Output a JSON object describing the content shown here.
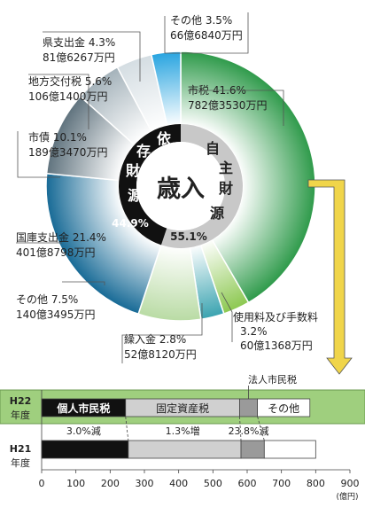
{
  "chart_data": [
    {
      "type": "pie",
      "center_label": "歳入",
      "groups": [
        {
          "label_chars": [
            "自",
            "主",
            "財",
            "源"
          ],
          "percent_text": "55.1%"
        },
        {
          "label_chars": [
            "依",
            "存",
            "財",
            "源"
          ],
          "percent_text": "44.9%"
        }
      ],
      "slices": [
        {
          "name": "市税",
          "value": 41.6,
          "percent_text": "41.6%",
          "amount": "782億3530万円",
          "color": "#2e9a4a"
        },
        {
          "name": "使用料及び手数料",
          "value": 3.2,
          "percent_text": "3.2%",
          "amount": "60億1368万円",
          "color": "#8cc850"
        },
        {
          "name": "繰入金",
          "value": 2.8,
          "percent_text": "2.8%",
          "amount": "52億8120万円",
          "color": "#3aa3b0"
        },
        {
          "name": "その他",
          "value": 7.5,
          "percent_text": "7.5%",
          "amount": "140億3495万円",
          "color": "#b9dba4"
        },
        {
          "name": "国庫支出金",
          "value": 21.4,
          "percent_text": "21.4%",
          "amount": "401億8798万円",
          "color": "#176a96"
        },
        {
          "name": "市債",
          "value": 10.1,
          "percent_text": "10.1%",
          "amount": "189億3470万円",
          "color": "#60737e"
        },
        {
          "name": "地方交付税",
          "value": 5.6,
          "percent_text": "5.6%",
          "amount": "106億1400万円",
          "color": "#a4b2ba"
        },
        {
          "name": "県支出金",
          "value": 4.3,
          "percent_text": "4.3%",
          "amount": "81億6267万円",
          "color": "#d4dde2"
        },
        {
          "name": "その他",
          "value": 3.5,
          "percent_text": "3.5%",
          "amount": "66億6840万円",
          "color": "#28a4e0"
        }
      ]
    },
    {
      "type": "bar",
      "orientation": "horizontal",
      "stacked": true,
      "categories": [
        "H22\n年度",
        "H21\n年度"
      ],
      "category_lines": [
        [
          "H22",
          "年度"
        ],
        [
          "H21",
          "年度"
        ]
      ],
      "xunit": "(億円)",
      "xlim": [
        0,
        900
      ],
      "xticks": [
        0,
        100,
        200,
        300,
        400,
        500,
        600,
        700,
        800,
        900
      ],
      "series": [
        {
          "name": "個人市民税",
          "values": [
            245,
            253
          ],
          "color": "#111111",
          "text_color": "#ffffff"
        },
        {
          "name": "固定資産税",
          "values": [
            333,
            329
          ],
          "color": "#d0d0d0",
          "text_color": "#222222"
        },
        {
          "name": "法人市民税",
          "values": [
            52,
            68
          ],
          "color": "#9a9a9a",
          "text_color": "#222222"
        },
        {
          "name": "その他",
          "values": [
            153,
            150
          ],
          "color": "#ffffff",
          "text_color": "#222222"
        }
      ],
      "changes": [
        "3.0%減",
        "1.3%増",
        "23.8%減"
      ],
      "highlight_color": "#9fcf7e",
      "pointer_color": "#f0d54a"
    }
  ]
}
